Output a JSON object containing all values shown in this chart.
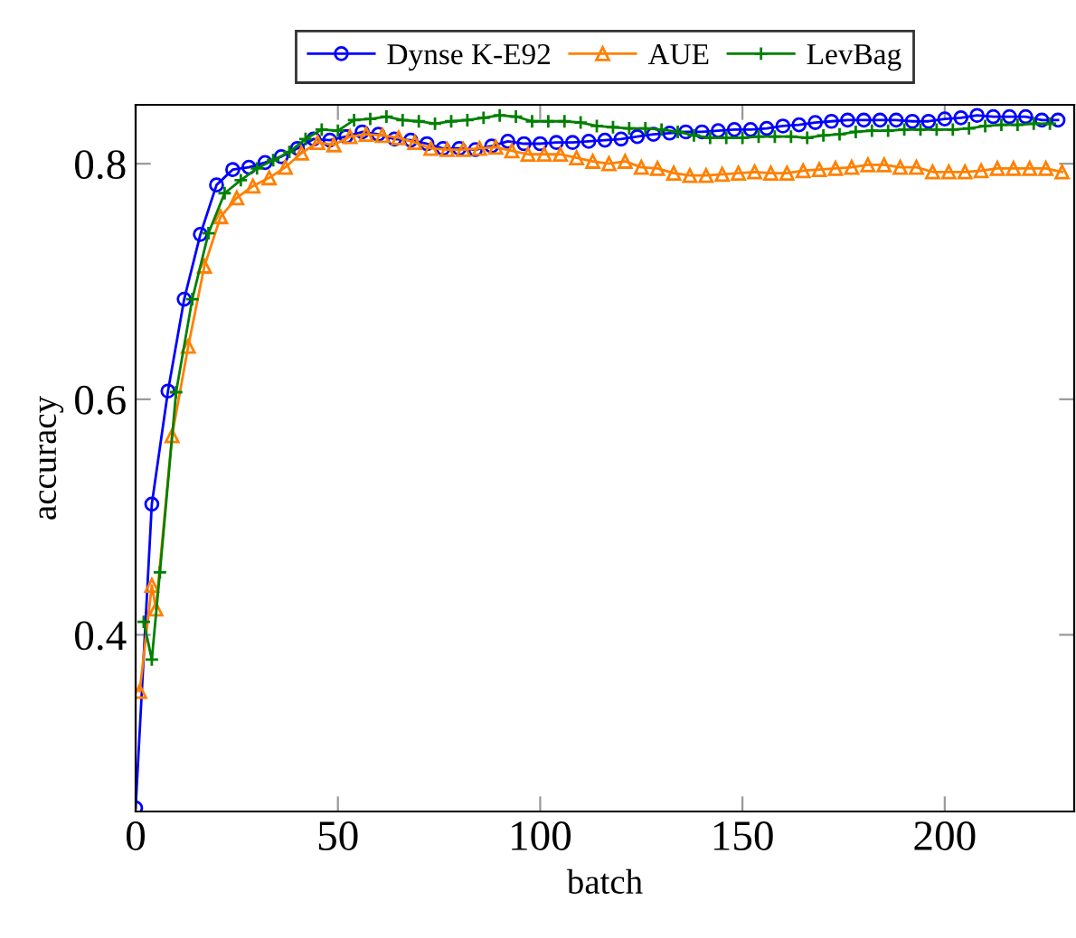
{
  "chart_data": {
    "type": "line",
    "xlabel": "batch",
    "ylabel": "accuracy",
    "xlim": [
      0,
      232
    ],
    "ylim": [
      0.25,
      0.85
    ],
    "xticks": [
      0,
      50,
      100,
      150,
      200
    ],
    "yticks": [
      {
        "value": 0.4,
        "label": "0.4"
      },
      {
        "value": 0.6,
        "label": "0.6"
      },
      {
        "value": 0.8,
        "label": "0.8"
      }
    ],
    "grid": false,
    "legend": "top",
    "line_style": "solid",
    "series": [
      {
        "name": "Dynse K-E92",
        "color": "#0000ff",
        "marker": "circle",
        "x": [
          0,
          4,
          8,
          12,
          16,
          20,
          24,
          28,
          32,
          36,
          40,
          44,
          48,
          52,
          56,
          60,
          64,
          68,
          72,
          76,
          80,
          84,
          88,
          92,
          96,
          100,
          104,
          108,
          112,
          116,
          120,
          124,
          128,
          132,
          136,
          140,
          144,
          148,
          152,
          156,
          160,
          164,
          168,
          172,
          176,
          180,
          184,
          188,
          192,
          196,
          200,
          204,
          208,
          212,
          216,
          220,
          224,
          228
        ],
        "values": [
          0.253,
          0.511,
          0.607,
          0.685,
          0.74,
          0.782,
          0.795,
          0.797,
          0.801,
          0.806,
          0.813,
          0.821,
          0.82,
          0.823,
          0.827,
          0.825,
          0.821,
          0.82,
          0.817,
          0.813,
          0.813,
          0.812,
          0.815,
          0.819,
          0.817,
          0.817,
          0.818,
          0.818,
          0.819,
          0.82,
          0.821,
          0.823,
          0.825,
          0.826,
          0.827,
          0.827,
          0.828,
          0.829,
          0.829,
          0.83,
          0.832,
          0.833,
          0.835,
          0.836,
          0.837,
          0.837,
          0.837,
          0.837,
          0.836,
          0.836,
          0.838,
          0.839,
          0.841,
          0.84,
          0.84,
          0.84,
          0.837,
          0.837
        ]
      },
      {
        "name": "AUE",
        "color": "#ff8000",
        "marker": "triangle",
        "x": [
          1,
          4,
          5,
          9,
          13,
          17,
          21,
          25,
          29,
          33,
          37,
          41,
          45,
          49,
          53,
          57,
          61,
          65,
          69,
          73,
          77,
          81,
          85,
          89,
          93,
          97,
          101,
          105,
          109,
          113,
          117,
          121,
          125,
          129,
          133,
          137,
          141,
          145,
          149,
          153,
          157,
          161,
          165,
          169,
          173,
          177,
          181,
          185,
          189,
          193,
          197,
          201,
          205,
          209,
          213,
          217,
          221,
          225,
          229
        ],
        "values": [
          0.352,
          0.442,
          0.422,
          0.569,
          0.645,
          0.713,
          0.755,
          0.771,
          0.781,
          0.788,
          0.797,
          0.809,
          0.818,
          0.816,
          0.823,
          0.825,
          0.824,
          0.822,
          0.818,
          0.813,
          0.812,
          0.812,
          0.813,
          0.814,
          0.811,
          0.808,
          0.808,
          0.808,
          0.805,
          0.802,
          0.8,
          0.802,
          0.797,
          0.796,
          0.792,
          0.79,
          0.79,
          0.791,
          0.792,
          0.793,
          0.792,
          0.792,
          0.794,
          0.795,
          0.796,
          0.797,
          0.799,
          0.799,
          0.797,
          0.797,
          0.793,
          0.793,
          0.793,
          0.794,
          0.796,
          0.796,
          0.796,
          0.796,
          0.793
        ]
      },
      {
        "name": "LevBag",
        "color": "#008000",
        "marker": "cross",
        "x": [
          2,
          4,
          6,
          10,
          14,
          18,
          22,
          26,
          30,
          34,
          38,
          42,
          46,
          50,
          54,
          58,
          62,
          66,
          70,
          74,
          78,
          82,
          86,
          90,
          94,
          98,
          102,
          106,
          110,
          114,
          118,
          122,
          126,
          130,
          134,
          138,
          142,
          146,
          150,
          154,
          158,
          162,
          166,
          170,
          174,
          178,
          182,
          186,
          190,
          194,
          198,
          202,
          206,
          210,
          214,
          218,
          222,
          226
        ],
        "values": [
          0.411,
          0.379,
          0.453,
          0.606,
          0.685,
          0.741,
          0.775,
          0.786,
          0.796,
          0.803,
          0.81,
          0.821,
          0.829,
          0.828,
          0.837,
          0.838,
          0.84,
          0.837,
          0.836,
          0.834,
          0.836,
          0.837,
          0.839,
          0.841,
          0.84,
          0.836,
          0.836,
          0.836,
          0.835,
          0.832,
          0.831,
          0.83,
          0.83,
          0.829,
          0.827,
          0.824,
          0.822,
          0.822,
          0.822,
          0.823,
          0.823,
          0.823,
          0.822,
          0.824,
          0.825,
          0.827,
          0.828,
          0.828,
          0.829,
          0.829,
          0.829,
          0.829,
          0.83,
          0.832,
          0.833,
          0.833,
          0.834,
          0.834
        ]
      }
    ]
  }
}
